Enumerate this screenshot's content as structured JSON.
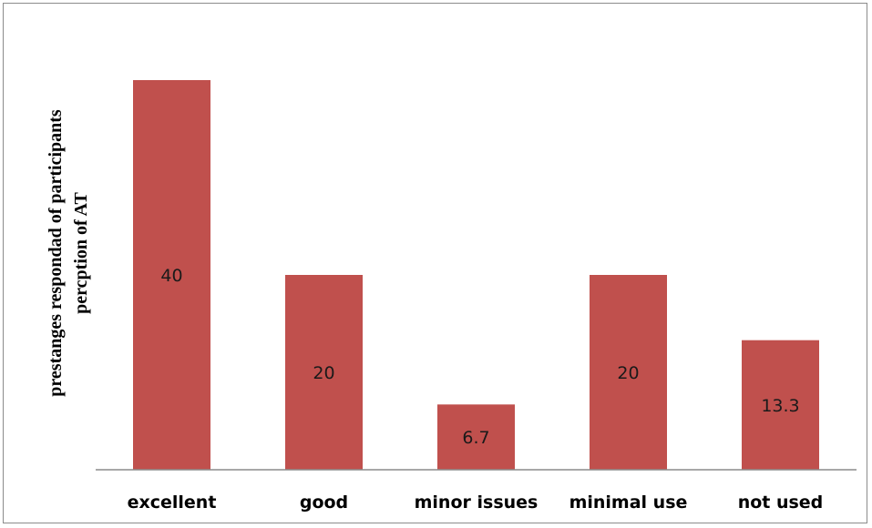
{
  "chart_data": {
    "type": "bar",
    "categories": [
      "excellent",
      "good",
      "minor issues",
      "minimal use",
      "not used"
    ],
    "values": [
      40,
      20,
      6.7,
      20,
      13.3
    ],
    "data_labels": [
      "40",
      "20",
      "6.7",
      "20",
      "13.3"
    ],
    "ylabel": "prestanges respondad of participants percption of AT",
    "ylabel_lines": [
      "prestanges respondad of participants",
      "percption of AT"
    ],
    "xlabel": "",
    "title": "",
    "ylim": [
      0,
      40
    ],
    "grid": false,
    "legend": "none",
    "bar_color": "#c0504d",
    "axis_color": "#8c8c8c"
  }
}
